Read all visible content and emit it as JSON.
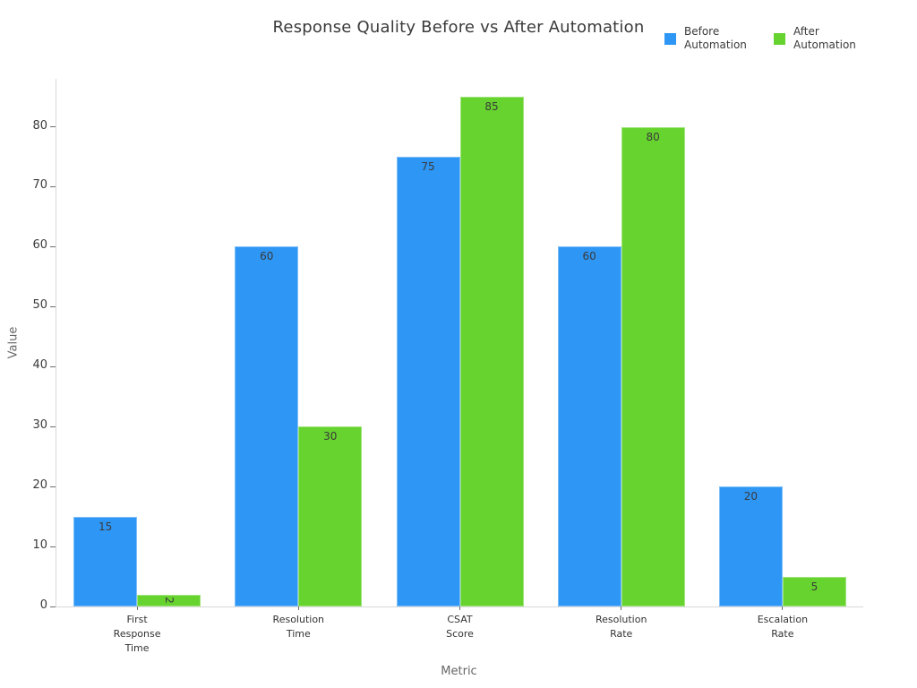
{
  "title": "Response Quality Before vs After Automation",
  "legend": {
    "position": "top-right",
    "items": [
      {
        "label": "Before Automation",
        "color": "#2e96f5"
      },
      {
        "label": "After Automation",
        "color": "#66d32e"
      }
    ]
  },
  "chart_data": {
    "type": "bar",
    "title": "Response Quality Before vs After Automation",
    "xlabel": "Metric",
    "ylabel": "Value",
    "ylim": [
      0,
      88
    ],
    "yticks": [
      0,
      10,
      20,
      30,
      40,
      50,
      60,
      70,
      80
    ],
    "grid": false,
    "legend_position": "top-right",
    "bar_value_labels": true,
    "categories": [
      "First Response Time",
      "Resolution Time",
      "CSAT Score",
      "Resolution Rate",
      "Escalation Rate"
    ],
    "category_lines": [
      [
        "First",
        "Response",
        "Time"
      ],
      [
        "Resolution",
        "Time"
      ],
      [
        "CSAT",
        "Score"
      ],
      [
        "Resolution",
        "Rate"
      ],
      [
        "Escalation",
        "Rate"
      ]
    ],
    "series": [
      {
        "name": "Before Automation",
        "color": "#2e96f5",
        "values": [
          15,
          60,
          75,
          60,
          20
        ]
      },
      {
        "name": "After Automation",
        "color": "#66d32e",
        "values": [
          2,
          30,
          85,
          80,
          5
        ]
      }
    ],
    "colors": {
      "axis_line": "#d9d9d9",
      "tick_mark": "#6e6e6e",
      "tick_text": "#3a3a3a",
      "axis_title_text": "#666666",
      "bar_value_text": "#3a3a3a"
    }
  }
}
